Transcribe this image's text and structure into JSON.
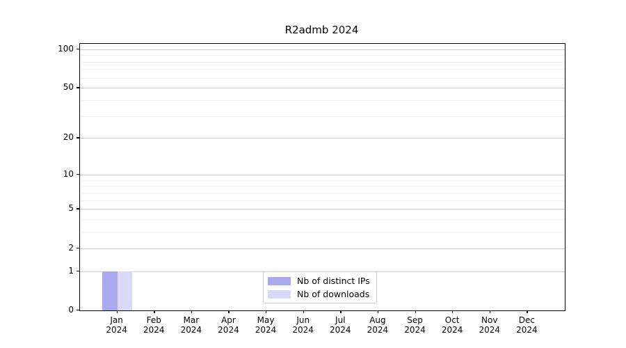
{
  "chart_data": {
    "type": "bar",
    "title": "R2admb 2024",
    "x_categories": [
      {
        "month": "Jan",
        "year": "2024"
      },
      {
        "month": "Feb",
        "year": "2024"
      },
      {
        "month": "Mar",
        "year": "2024"
      },
      {
        "month": "Apr",
        "year": "2024"
      },
      {
        "month": "May",
        "year": "2024"
      },
      {
        "month": "Jun",
        "year": "2024"
      },
      {
        "month": "Jul",
        "year": "2024"
      },
      {
        "month": "Aug",
        "year": "2024"
      },
      {
        "month": "Sep",
        "year": "2024"
      },
      {
        "month": "Oct",
        "year": "2024"
      },
      {
        "month": "Nov",
        "year": "2024"
      },
      {
        "month": "Dec",
        "year": "2024"
      }
    ],
    "series": [
      {
        "name": "Nb of distinct IPs",
        "color": "#a9a9f0",
        "values": [
          1,
          0,
          0,
          0,
          0,
          0,
          0,
          0,
          0,
          0,
          0,
          0
        ]
      },
      {
        "name": "Nb of downloads",
        "color": "#dadaf8",
        "values": [
          1,
          0,
          0,
          0,
          0,
          0,
          0,
          0,
          0,
          0,
          0,
          0
        ]
      }
    ],
    "y_axis": {
      "scale": "log1p",
      "tick_values": [
        0,
        1,
        2,
        5,
        10,
        20,
        50,
        100
      ],
      "minor_gridline_values": [
        3,
        4,
        6,
        7,
        8,
        9,
        30,
        40,
        60,
        70,
        80,
        90
      ],
      "ylim": [
        0,
        110
      ]
    },
    "legend": {
      "position": "bottom-center"
    },
    "grid": "on",
    "colors": {
      "major_gridline": "#cccccc",
      "minor_gridline": "#f0f0f0",
      "axis": "#000000",
      "background": "#ffffff"
    }
  }
}
